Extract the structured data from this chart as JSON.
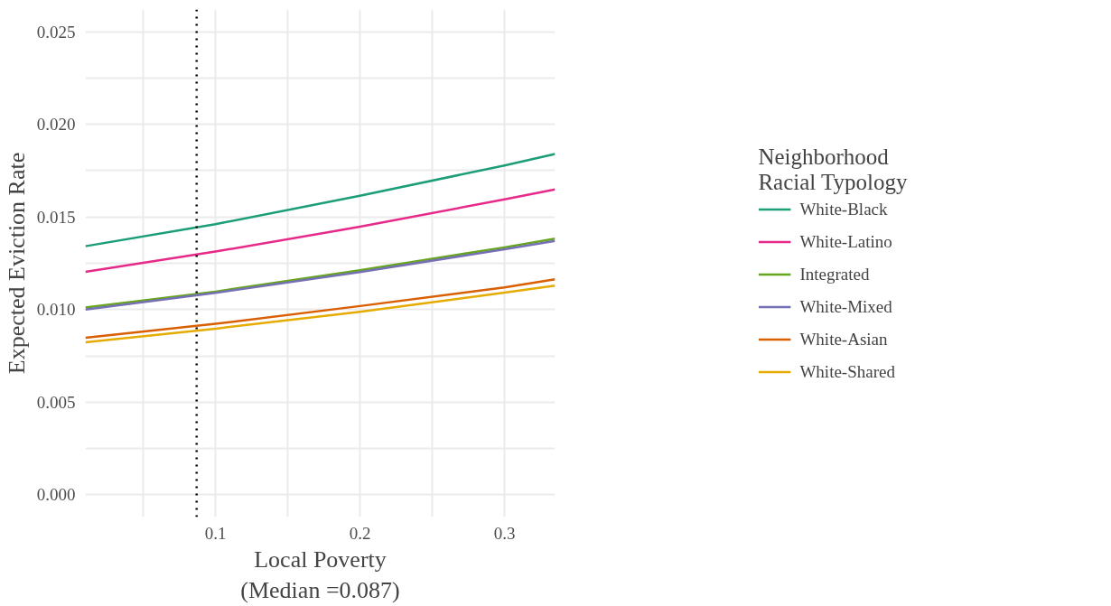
{
  "chart_data": {
    "type": "line",
    "xlabel": "Local Poverty\n(Median =0.087)",
    "ylabel": "Expected Eviction Rate",
    "legend_title": "Neighborhood\nRacial Typology",
    "legend": "right",
    "grid": true,
    "line_style": "solid",
    "x": [
      0.01,
      0.1,
      0.2,
      0.3,
      0.335
    ],
    "xlim": [
      0.01,
      0.335
    ],
    "xticks": [
      {
        "value": 0.05,
        "label": null
      },
      0.1,
      {
        "value": 0.15,
        "label": null
      },
      0.2,
      {
        "value": 0.25,
        "label": null
      },
      0.3
    ],
    "ylim": [
      -0.0012,
      0.0262
    ],
    "yticks": [
      {
        "value": 0,
        "label": "0.000"
      },
      {
        "value": 0.0025,
        "label": null
      },
      0.005,
      {
        "value": 0.0075,
        "label": null
      },
      {
        "value": 0.01,
        "label": "0.010"
      },
      {
        "value": 0.0125,
        "label": null
      },
      0.015,
      {
        "value": 0.0175,
        "label": null
      },
      {
        "value": 0.02,
        "label": "0.020"
      },
      {
        "value": 0.0225,
        "label": null
      },
      0.025
    ],
    "series": [
      {
        "name": "White-Black",
        "color": "#1b9e77",
        "values": [
          0.01342,
          0.01461,
          0.01614,
          0.01778,
          0.0184
        ]
      },
      {
        "name": "White-Latino",
        "color": "#e7298a",
        "values": [
          0.01204,
          0.01313,
          0.01447,
          0.01595,
          0.01649
        ]
      },
      {
        "name": "Integrated",
        "color": "#66a61e",
        "values": [
          0.01011,
          0.01097,
          0.01212,
          0.01336,
          0.01383
        ]
      },
      {
        "name": "White-Mixed",
        "color": "#7570b3",
        "values": [
          0.01,
          0.0109,
          0.01202,
          0.01326,
          0.01371
        ]
      },
      {
        "name": "White-Asian",
        "color": "#d95f02",
        "values": [
          0.00848,
          0.00923,
          0.01019,
          0.0112,
          0.01163
        ]
      },
      {
        "name": "White-Shared",
        "color": "#e6ab02",
        "values": [
          0.00823,
          0.00897,
          0.00988,
          0.01091,
          0.01129
        ]
      }
    ],
    "ref_lines": [
      {
        "axis": "x",
        "value": 0.087,
        "color": "#000000",
        "line_style": "dotted"
      }
    ]
  }
}
